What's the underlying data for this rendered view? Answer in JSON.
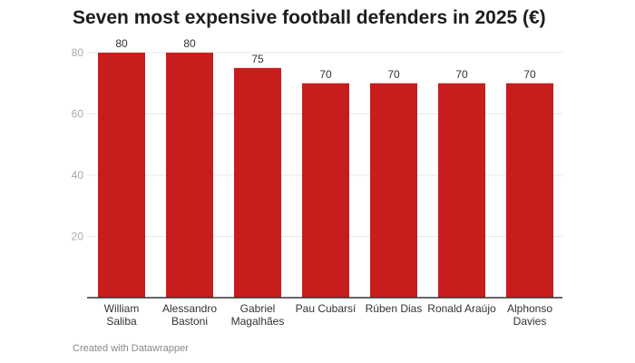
{
  "chart_data": {
    "type": "bar",
    "title": "Seven most expensive football defenders in 2025 (€)",
    "categories": [
      [
        "William",
        "Saliba"
      ],
      [
        "Alessandro",
        "Bastoni"
      ],
      [
        "Gabriel",
        "Magalhães"
      ],
      [
        "Pau Cubarsí"
      ],
      [
        "Rúben Dias"
      ],
      [
        "Ronald Araújo"
      ],
      [
        "Alphonso",
        "Davies"
      ]
    ],
    "values": [
      80,
      80,
      75,
      70,
      70,
      70,
      70
    ],
    "yticks": [
      20,
      40,
      60,
      80
    ],
    "ylim": [
      0,
      80
    ],
    "grid": true,
    "bar_color": "#c71e1d",
    "xlabel": "",
    "ylabel": ""
  },
  "footer": "Created with Datawrapper"
}
